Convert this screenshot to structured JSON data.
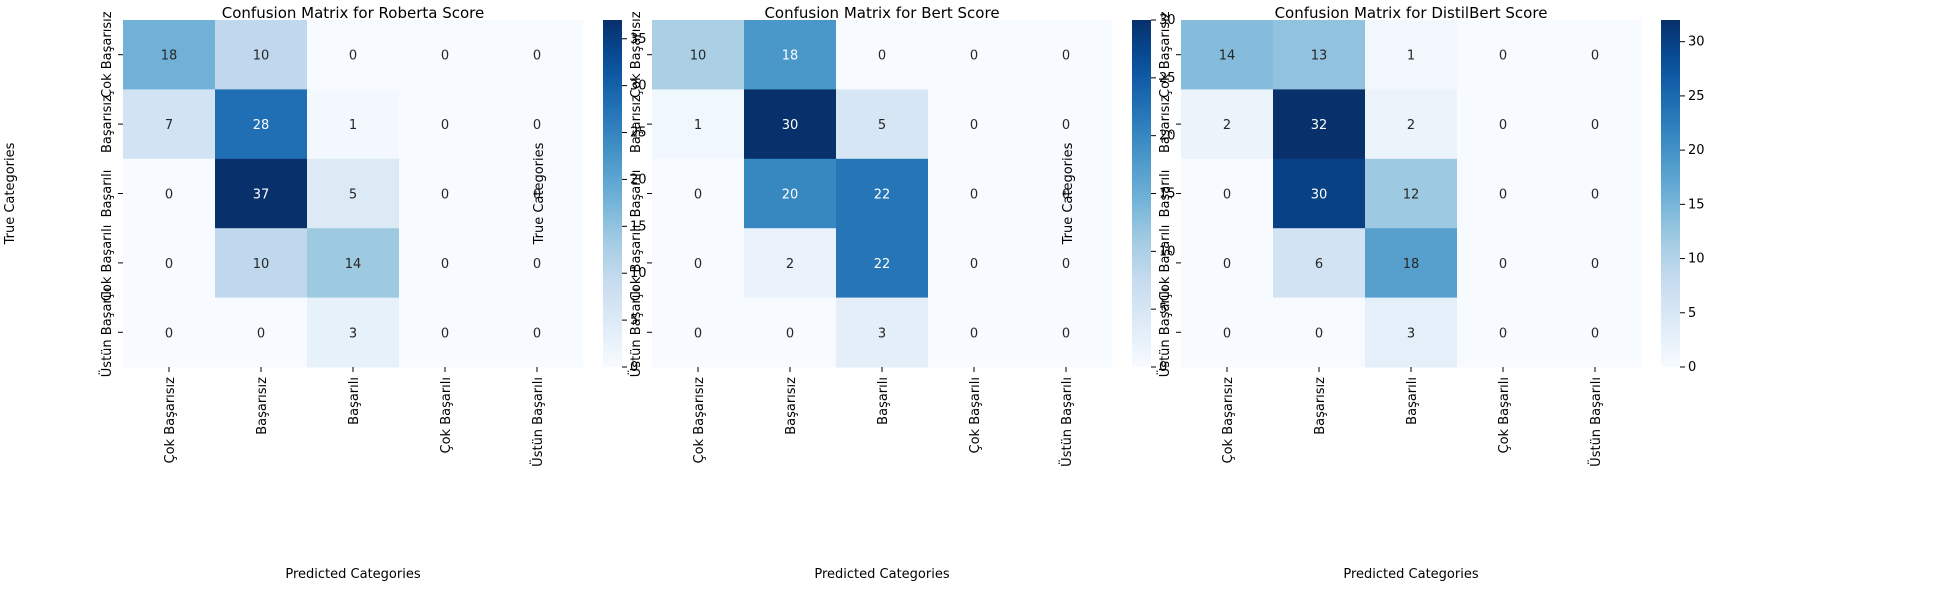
{
  "chart_data": [
    {
      "type": "heatmap",
      "title": "Confusion Matrix for Roberta Score",
      "xlabel": "Predicted Categories",
      "ylabel": "True Categories",
      "x_categories": [
        "Çok Başarısız",
        "Başarısız",
        "Başarılı",
        "Çok Başarılı",
        "Üstün Başarılı"
      ],
      "y_categories": [
        "Çok Başarısız",
        "Başarısız",
        "Başarılı",
        "Çok Başarılı",
        "Üstün Başarılı"
      ],
      "values": [
        [
          18,
          10,
          0,
          0,
          0
        ],
        [
          7,
          28,
          1,
          0,
          0
        ],
        [
          0,
          37,
          5,
          0,
          0
        ],
        [
          0,
          10,
          14,
          0,
          0
        ],
        [
          0,
          0,
          3,
          0,
          0
        ]
      ],
      "colormap": "Blues",
      "vmin": 0,
      "vmax": 37,
      "colorbar_ticks": [
        0,
        5,
        10,
        15,
        20,
        25,
        30,
        35
      ]
    },
    {
      "type": "heatmap",
      "title": "Confusion Matrix for Bert Score",
      "xlabel": "Predicted Categories",
      "ylabel": "True Categories",
      "x_categories": [
        "Çok Başarısız",
        "Başarısız",
        "Başarılı",
        "Çok Başarılı",
        "Üstün Başarılı"
      ],
      "y_categories": [
        "Çok Başarısız",
        "Başarısız",
        "Başarılı",
        "Çok Başarılı",
        "Üstün Başarılı"
      ],
      "values": [
        [
          10,
          18,
          0,
          0,
          0
        ],
        [
          1,
          30,
          5,
          0,
          0
        ],
        [
          0,
          20,
          22,
          0,
          0
        ],
        [
          0,
          2,
          22,
          0,
          0
        ],
        [
          0,
          0,
          3,
          0,
          0
        ]
      ],
      "colormap": "Blues",
      "vmin": 0,
      "vmax": 30,
      "colorbar_ticks": [
        0,
        5,
        10,
        15,
        20,
        25,
        30
      ]
    },
    {
      "type": "heatmap",
      "title": "Confusion Matrix for DistilBert Score",
      "xlabel": "Predicted Categories",
      "ylabel": "True Categories",
      "x_categories": [
        "Çok Başarısız",
        "Başarısız",
        "Başarılı",
        "Çok Başarılı",
        "Üstün Başarılı"
      ],
      "y_categories": [
        "Çok Başarısız",
        "Başarısız",
        "Başarılı",
        "Çok Başarılı",
        "Üstün Başarılı"
      ],
      "values": [
        [
          14,
          13,
          1,
          0,
          0
        ],
        [
          2,
          32,
          2,
          0,
          0
        ],
        [
          0,
          30,
          12,
          0,
          0
        ],
        [
          0,
          6,
          18,
          0,
          0
        ],
        [
          0,
          0,
          3,
          0,
          0
        ]
      ],
      "colormap": "Blues",
      "vmin": 0,
      "vmax": 32,
      "colorbar_ticks": [
        0,
        5,
        10,
        15,
        20,
        25,
        30
      ]
    }
  ]
}
